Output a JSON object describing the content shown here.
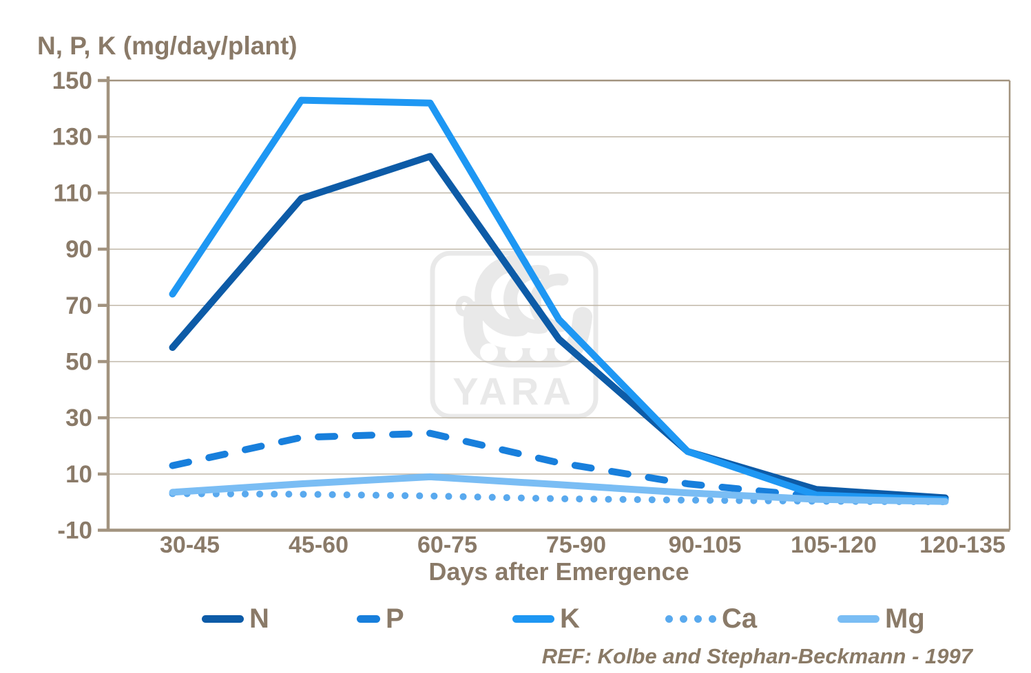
{
  "chart_data": {
    "type": "line",
    "title": "N, P, K (mg/day/plant)",
    "xlabel": "Days after Emergence",
    "reference": "REF: Kolbe and Stephan-Beckmann - 1997",
    "watermark": "YARA",
    "categories": [
      "30-45",
      "45-60",
      "60-75",
      "75-90",
      "90-105",
      "105-120",
      "120-135"
    ],
    "ylim": [
      -10,
      150
    ],
    "yticks": [
      150,
      130,
      110,
      90,
      70,
      50,
      30,
      10,
      -10
    ],
    "grid": "horizontal",
    "legend_position": "bottom",
    "series": [
      {
        "name": "N",
        "style": "solid",
        "color": "#0d5ba7",
        "values": [
          55,
          108,
          123,
          58,
          18,
          4.5,
          1.5
        ]
      },
      {
        "name": "P",
        "style": "dashed",
        "color": "#187fdc",
        "values": [
          13,
          23,
          24.5,
          14,
          6.5,
          2,
          0.8
        ]
      },
      {
        "name": "K",
        "style": "solid",
        "color": "#1e97f3",
        "values": [
          74,
          143,
          142,
          65,
          18,
          2.5,
          0.8
        ]
      },
      {
        "name": "Ca",
        "style": "dotted",
        "color": "#59a9ee",
        "values": [
          3,
          2.8,
          2.2,
          1.2,
          0.7,
          0.3,
          0.1
        ]
      },
      {
        "name": "Mg",
        "style": "solid",
        "color": "#7abdf4",
        "values": [
          3.5,
          6.5,
          9,
          6.2,
          3.3,
          1,
          0.2
        ]
      }
    ],
    "axis_color": "#a2937f",
    "grid_color": "#c0b7a8",
    "text_color": "#8a7a68",
    "watermark_color": "#e9e9e9"
  }
}
